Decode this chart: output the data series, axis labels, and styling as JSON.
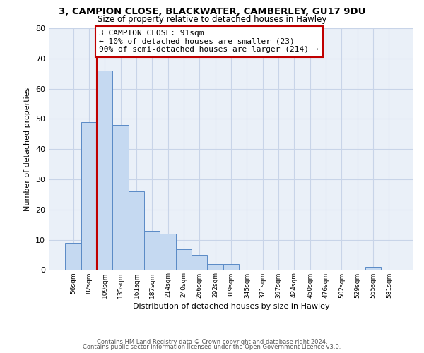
{
  "title": "3, CAMPION CLOSE, BLACKWATER, CAMBERLEY, GU17 9DU",
  "subtitle": "Size of property relative to detached houses in Hawley",
  "xlabel": "Distribution of detached houses by size in Hawley",
  "ylabel": "Number of detached properties",
  "bin_labels": [
    "56sqm",
    "82sqm",
    "109sqm",
    "135sqm",
    "161sqm",
    "187sqm",
    "214sqm",
    "240sqm",
    "266sqm",
    "292sqm",
    "319sqm",
    "345sqm",
    "371sqm",
    "397sqm",
    "424sqm",
    "450sqm",
    "476sqm",
    "502sqm",
    "529sqm",
    "555sqm",
    "581sqm"
  ],
  "bar_values": [
    9,
    49,
    66,
    48,
    26,
    13,
    12,
    7,
    5,
    2,
    2,
    0,
    0,
    0,
    0,
    0,
    0,
    0,
    0,
    1,
    0
  ],
  "bar_color": "#c5d9f1",
  "bar_edge_color": "#5a8ac6",
  "vline_x": 1.5,
  "vline_color": "#c00000",
  "annotation_text": "3 CAMPION CLOSE: 91sqm\n← 10% of detached houses are smaller (23)\n90% of semi-detached houses are larger (214) →",
  "annotation_box_color": "#ffffff",
  "annotation_box_edge_color": "#c00000",
  "ylim": [
    0,
    80
  ],
  "yticks": [
    0,
    10,
    20,
    30,
    40,
    50,
    60,
    70,
    80
  ],
  "background_color": "#ffffff",
  "plot_bg_color": "#eaf0f8",
  "grid_color": "#c8d4e8",
  "footer_line1": "Contains HM Land Registry data © Crown copyright and database right 2024.",
  "footer_line2": "Contains public sector information licensed under the Open Government Licence v3.0."
}
